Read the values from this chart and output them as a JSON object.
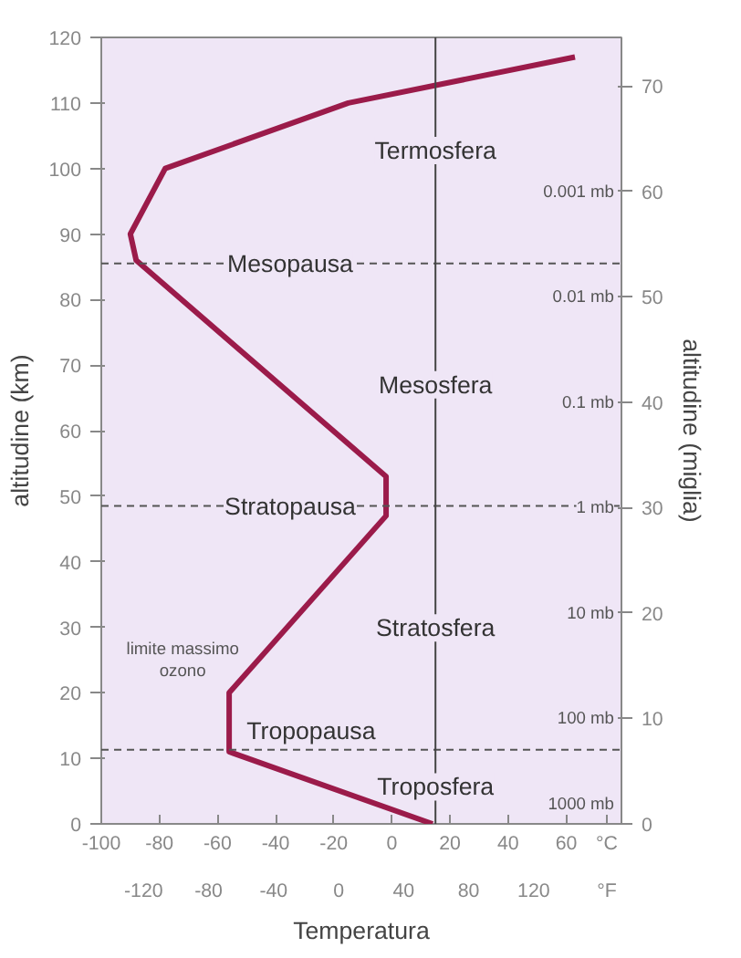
{
  "chart_data": {
    "type": "line",
    "xlabel": "Temperatura",
    "ylabel": "altitudine (km)",
    "y2label": "altitudine (miglia)",
    "series": [
      {
        "color": "#9b1b4a",
        "x": [
          14,
          -56,
          -56,
          -2,
          -2,
          -88,
          -90,
          -78,
          -15,
          63
        ],
        "values": [
          0,
          11,
          20,
          47,
          53,
          86,
          90,
          100,
          110,
          117
        ]
      }
    ],
    "xlim": [
      -100,
      79
    ],
    "ylim": [
      0,
      120
    ],
    "xticks": [
      -100,
      -80,
      -60,
      -40,
      -20,
      0,
      20,
      40,
      60,
      {
        "value": 74,
        "label": "°C"
      }
    ],
    "yticks": [
      0,
      10,
      20,
      30,
      40,
      50,
      60,
      70,
      80,
      90,
      100,
      110,
      120
    ],
    "x2lim": [
      -146,
      174
    ],
    "x2ticks": [
      -120,
      -80,
      -40,
      0,
      40,
      80,
      120,
      {
        "value": 165,
        "label": "°F"
      }
    ],
    "y2lim": [
      0,
      74.6
    ],
    "y2ticks": [
      0,
      10,
      20,
      30,
      40,
      50,
      60,
      70
    ],
    "ref_lines": [
      {
        "axis": "y",
        "value": 85.5,
        "label": "Mesopausa",
        "line_style": "dashed",
        "color": "#555555"
      },
      {
        "axis": "y",
        "value": 48.5,
        "label": "Stratopausa",
        "line_style": "dashed",
        "color": "#555555"
      },
      {
        "axis": "y",
        "value": 11.3,
        "label": "Tropopausa",
        "line_style": "dashed",
        "color": "#555555"
      },
      {
        "axis": "x",
        "value": 15,
        "line_style": "solid",
        "color": "#444444"
      }
    ],
    "annotations": [
      "Termosfera",
      "Mesosfera",
      "Stratosfera",
      "Troposfera",
      "limite massimo ozono",
      "0.001 mb",
      "0.01 mb",
      "0.1 mb",
      "1 mb",
      "10 mb",
      "100 mb",
      "1000 mb"
    ],
    "grid": false,
    "marker": "none",
    "line_style": "solid"
  }
}
